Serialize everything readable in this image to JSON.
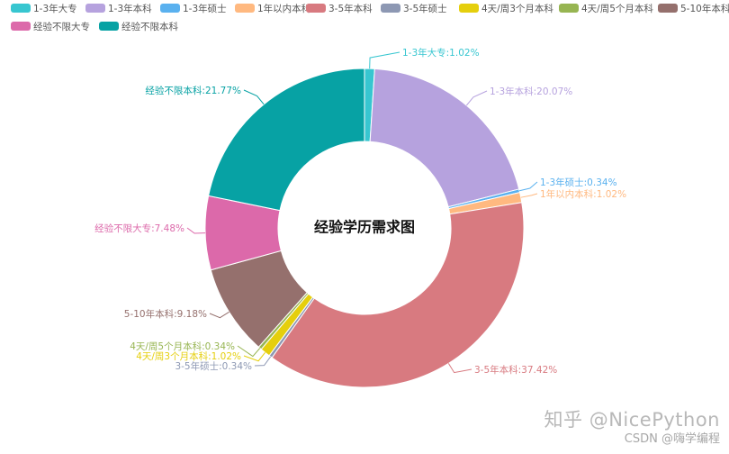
{
  "watermark": {
    "primary": "知乎 @NicePython",
    "secondary": "CSDN @嗨学编程"
  },
  "chart_data": {
    "type": "pie",
    "variant": "donut",
    "title": "经验学历需求图",
    "legend_position": "top-left",
    "series": [
      {
        "name": "1-3年大专",
        "value": 1.02,
        "label": "1-3年大专:1.02%",
        "color": "#37c6d0"
      },
      {
        "name": "1-3年本科",
        "value": 20.07,
        "label": "1-3年本科:20.07%",
        "color": "#b6a2de"
      },
      {
        "name": "1-3年硕士",
        "value": 0.34,
        "label": "1-3年硕士:0.34%",
        "color": "#5ab1ef"
      },
      {
        "name": "1年以内本科",
        "value": 1.02,
        "label": "1年以内本科:1.02%",
        "color": "#ffb980"
      },
      {
        "name": "3-5年本科",
        "value": 37.42,
        "label": "3-5年本科:37.42%",
        "color": "#d87a80"
      },
      {
        "name": "3-5年硕士",
        "value": 0.34,
        "label": "3-5年硕士:0.34%",
        "color": "#8d98b3"
      },
      {
        "name": "4天/周3个月本科",
        "value": 1.02,
        "label": "4天/周3个月本科:1.02%",
        "color": "#e5cf0d"
      },
      {
        "name": "4天/周5个月本科",
        "value": 0.34,
        "label": "4天/周5个月本科:0.34%",
        "color": "#97b552"
      },
      {
        "name": "5-10年本科",
        "value": 9.18,
        "label": "5-10年本科:9.18%",
        "color": "#95706d"
      },
      {
        "name": "经验不限大专",
        "value": 7.48,
        "label": "经验不限大专:7.48%",
        "color": "#dc69aa"
      },
      {
        "name": "经验不限本科",
        "value": 21.77,
        "label": "经验不限本科:21.77%",
        "color": "#07a2a4"
      }
    ]
  }
}
